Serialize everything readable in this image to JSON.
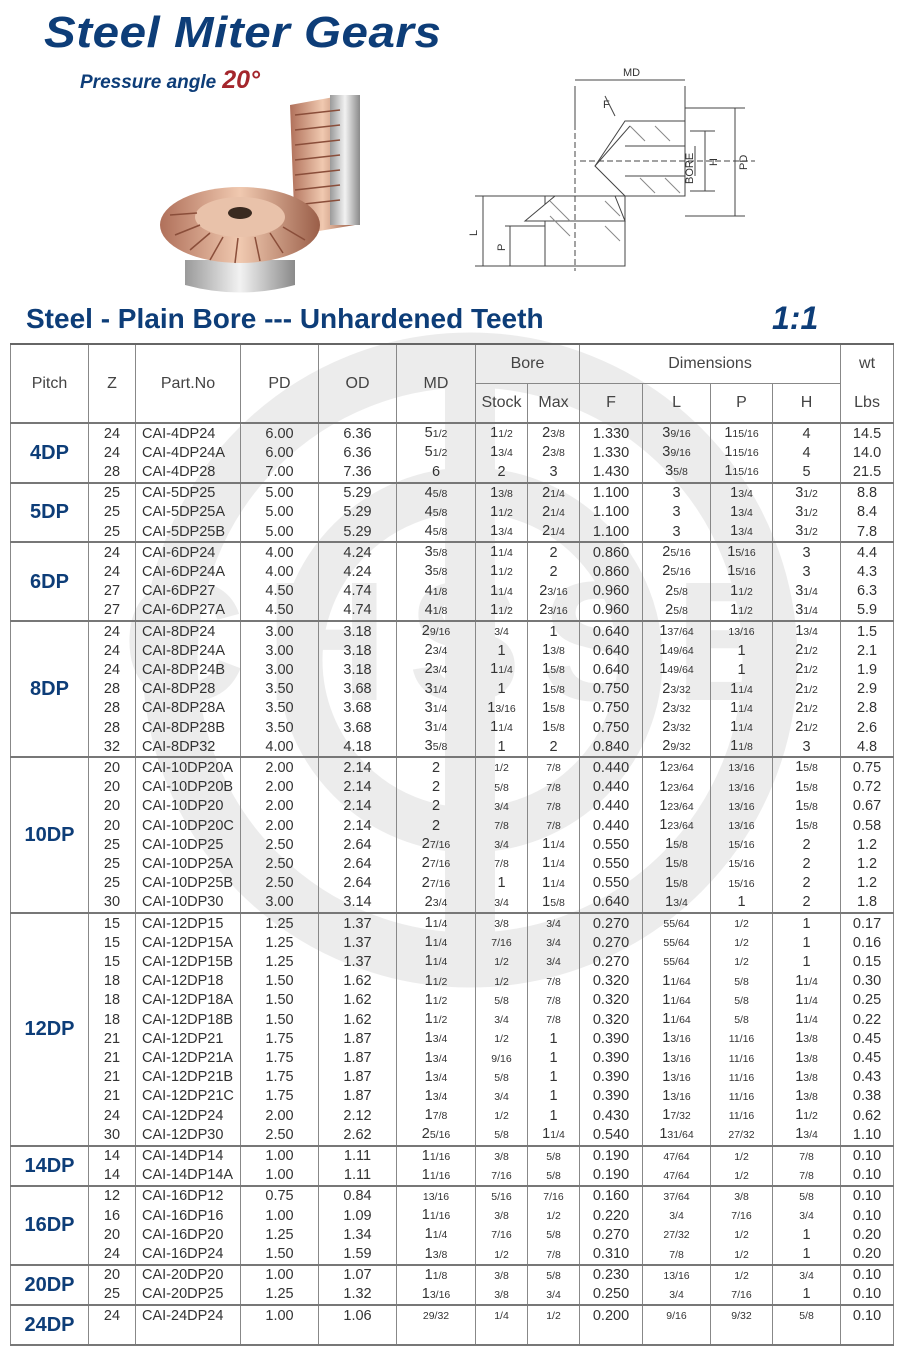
{
  "header": {
    "title": "Steel Miter Gears",
    "pressure_angle_label": "Pressure angle",
    "pressure_angle_value": "20°",
    "subtitle": "Steel - Plain Bore --- Unhardened Teeth",
    "ratio": "1:1"
  },
  "diagram": {
    "labels": {
      "md": "MD",
      "f": "F",
      "bore": "BORE",
      "h": "H",
      "pd": "PD",
      "l": "L",
      "p": "P"
    }
  },
  "watermark": "CHSSB",
  "colors": {
    "brand_blue": "#0d3d78",
    "accent_red": "#a4262c"
  },
  "table": {
    "headers": {
      "pitch": "Pitch",
      "z": "Z",
      "part": "Part.No",
      "pd": "PD",
      "od": "OD",
      "md": "MD",
      "bore": "Bore",
      "stock": "Stock",
      "max": "Max",
      "dimensions": "Dimensions",
      "f": "F",
      "l": "L",
      "p": "P",
      "h": "H",
      "wt": "wt",
      "lbs": "Lbs"
    },
    "groups": [
      {
        "pitch": "4DP",
        "rows": [
          [
            "24",
            "CAI-4DP24",
            "6.00",
            "6.36",
            "5 1/2",
            "1 1/2",
            "2 3/8",
            "1.330",
            "3 9/16",
            "1 15/16",
            "4",
            "14.5"
          ],
          [
            "24",
            "CAI-4DP24A",
            "6.00",
            "6.36",
            "5 1/2",
            "1 3/4",
            "2 3/8",
            "1.330",
            "3 9/16",
            "1 15/16",
            "4",
            "14.0"
          ],
          [
            "28",
            "CAI-4DP28",
            "7.00",
            "7.36",
            "6",
            "2",
            "3",
            "1.430",
            "3 5/8",
            "1 15/16",
            "5",
            "21.5"
          ]
        ]
      },
      {
        "pitch": "5DP",
        "rows": [
          [
            "25",
            "CAI-5DP25",
            "5.00",
            "5.29",
            "4 5/8",
            "1 3/8",
            "2 1/4",
            "1.100",
            "3",
            "1 3/4",
            "3 1/2",
            "8.8"
          ],
          [
            "25",
            "CAI-5DP25A",
            "5.00",
            "5.29",
            "4 5/8",
            "1 1/2",
            "2 1/4",
            "1.100",
            "3",
            "1 3/4",
            "3 1/2",
            "8.4"
          ],
          [
            "25",
            "CAI-5DP25B",
            "5.00",
            "5.29",
            "4 5/8",
            "1 3/4",
            "2 1/4",
            "1.100",
            "3",
            "1 3/4",
            "3 1/2",
            "7.8"
          ]
        ]
      },
      {
        "pitch": "6DP",
        "rows": [
          [
            "24",
            "CAI-6DP24",
            "4.00",
            "4.24",
            "3 5/8",
            "1 1/4",
            "2",
            "0.860",
            "2 5/16",
            "1 5/16",
            "3",
            "4.4"
          ],
          [
            "24",
            "CAI-6DP24A",
            "4.00",
            "4.24",
            "3 5/8",
            "1 1/2",
            "2",
            "0.860",
            "2 5/16",
            "1 5/16",
            "3",
            "4.3"
          ],
          [
            "27",
            "CAI-6DP27",
            "4.50",
            "4.74",
            "4 1/8",
            "1 1/4",
            "2 3/16",
            "0.960",
            "2 5/8",
            "1 1/2",
            "3 1/4",
            "6.3"
          ],
          [
            "27",
            "CAI-6DP27A",
            "4.50",
            "4.74",
            "4 1/8",
            "1 1/2",
            "2 3/16",
            "0.960",
            "2 5/8",
            "1 1/2",
            "3 1/4",
            "5.9"
          ]
        ]
      },
      {
        "pitch": "8DP",
        "rows": [
          [
            "24",
            "CAI-8DP24",
            "3.00",
            "3.18",
            "2 9/16",
            "3/4",
            "1",
            "0.640",
            "1 37/64",
            "13/16",
            "1 3/4",
            "1.5"
          ],
          [
            "24",
            "CAI-8DP24A",
            "3.00",
            "3.18",
            "2 3/4",
            "1",
            "1 3/8",
            "0.640",
            "1 49/64",
            "1",
            "2 1/2",
            "2.1"
          ],
          [
            "24",
            "CAI-8DP24B",
            "3.00",
            "3.18",
            "2 3/4",
            "1 1/4",
            "1 5/8",
            "0.640",
            "1 49/64",
            "1",
            "2 1/2",
            "1.9"
          ],
          [
            "28",
            "CAI-8DP28",
            "3.50",
            "3.68",
            "3 1/4",
            "1",
            "1 5/8",
            "0.750",
            "2 3/32",
            "1 1/4",
            "2 1/2",
            "2.9"
          ],
          [
            "28",
            "CAI-8DP28A",
            "3.50",
            "3.68",
            "3 1/4",
            "1 3/16",
            "1 5/8",
            "0.750",
            "2 3/32",
            "1 1/4",
            "2 1/2",
            "2.8"
          ],
          [
            "28",
            "CAI-8DP28B",
            "3.50",
            "3.68",
            "3 1/4",
            "1 1/4",
            "1 5/8",
            "0.750",
            "2 3/32",
            "1 1/4",
            "2 1/2",
            "2.6"
          ],
          [
            "32",
            "CAI-8DP32",
            "4.00",
            "4.18",
            "3 5/8",
            "1",
            "2",
            "0.840",
            "2 9/32",
            "1 1/8",
            "3",
            "4.8"
          ]
        ]
      },
      {
        "pitch": "10DP",
        "rows": [
          [
            "20",
            "CAI-10DP20A",
            "2.00",
            "2.14",
            "2",
            "1/2",
            "7/8",
            "0.440",
            "1 23/64",
            "13/16",
            "1 5/8",
            "0.75"
          ],
          [
            "20",
            "CAI-10DP20B",
            "2.00",
            "2.14",
            "2",
            "5/8",
            "7/8",
            "0.440",
            "1 23/64",
            "13/16",
            "1 5/8",
            "0.72"
          ],
          [
            "20",
            "CAI-10DP20",
            "2.00",
            "2.14",
            "2",
            "3/4",
            "7/8",
            "0.440",
            "1 23/64",
            "13/16",
            "1 5/8",
            "0.67"
          ],
          [
            "20",
            "CAI-10DP20C",
            "2.00",
            "2.14",
            "2",
            "7/8",
            "7/8",
            "0.440",
            "1 23/64",
            "13/16",
            "1 5/8",
            "0.58"
          ],
          [
            "25",
            "CAI-10DP25",
            "2.50",
            "2.64",
            "2 7/16",
            "3/4",
            "1 1/4",
            "0.550",
            "1 5/8",
            "15/16",
            "2",
            "1.2"
          ],
          [
            "25",
            "CAI-10DP25A",
            "2.50",
            "2.64",
            "2 7/16",
            "7/8",
            "1 1/4",
            "0.550",
            "1 5/8",
            "15/16",
            "2",
            "1.2"
          ],
          [
            "25",
            "CAI-10DP25B",
            "2.50",
            "2.64",
            "2 7/16",
            "1",
            "1 1/4",
            "0.550",
            "1 5/8",
            "15/16",
            "2",
            "1.2"
          ],
          [
            "30",
            "CAI-10DP30",
            "3.00",
            "3.14",
            "2 3/4",
            "3/4",
            "1 5/8",
            "0.640",
            "1 3/4",
            "1",
            "2",
            "1.8"
          ]
        ]
      },
      {
        "pitch": "12DP",
        "rows": [
          [
            "15",
            "CAI-12DP15",
            "1.25",
            "1.37",
            "1 1/4",
            "3/8",
            "3/4",
            "0.270",
            "55/64",
            "1/2",
            "1",
            "0.17"
          ],
          [
            "15",
            "CAI-12DP15A",
            "1.25",
            "1.37",
            "1 1/4",
            "7/16",
            "3/4",
            "0.270",
            "55/64",
            "1/2",
            "1",
            "0.16"
          ],
          [
            "15",
            "CAI-12DP15B",
            "1.25",
            "1.37",
            "1 1/4",
            "1/2",
            "3/4",
            "0.270",
            "55/64",
            "1/2",
            "1",
            "0.15"
          ],
          [
            "18",
            "CAI-12DP18",
            "1.50",
            "1.62",
            "1 1/2",
            "1/2",
            "7/8",
            "0.320",
            "1 1/64",
            "5/8",
            "1 1/4",
            "0.30"
          ],
          [
            "18",
            "CAI-12DP18A",
            "1.50",
            "1.62",
            "1 1/2",
            "5/8",
            "7/8",
            "0.320",
            "1 1/64",
            "5/8",
            "1 1/4",
            "0.25"
          ],
          [
            "18",
            "CAI-12DP18B",
            "1.50",
            "1.62",
            "1 1/2",
            "3/4",
            "7/8",
            "0.320",
            "1 1/64",
            "5/8",
            "1 1/4",
            "0.22"
          ],
          [
            "21",
            "CAI-12DP21",
            "1.75",
            "1.87",
            "1 3/4",
            "1/2",
            "1",
            "0.390",
            "1 3/16",
            "11/16",
            "1 3/8",
            "0.45"
          ],
          [
            "21",
            "CAI-12DP21A",
            "1.75",
            "1.87",
            "1 3/4",
            "9/16",
            "1",
            "0.390",
            "1 3/16",
            "11/16",
            "1 3/8",
            "0.45"
          ],
          [
            "21",
            "CAI-12DP21B",
            "1.75",
            "1.87",
            "1 3/4",
            "5/8",
            "1",
            "0.390",
            "1 3/16",
            "11/16",
            "1 3/8",
            "0.43"
          ],
          [
            "21",
            "CAI-12DP21C",
            "1.75",
            "1.87",
            "1 3/4",
            "3/4",
            "1",
            "0.390",
            "1 3/16",
            "11/16",
            "1 3/8",
            "0.38"
          ],
          [
            "24",
            "CAI-12DP24",
            "2.00",
            "2.12",
            "1 7/8",
            "1/2",
            "1",
            "0.430",
            "1 7/32",
            "11/16",
            "1 1/2",
            "0.62"
          ],
          [
            "30",
            "CAI-12DP30",
            "2.50",
            "2.62",
            "2 5/16",
            "5/8",
            "1 1/4",
            "0.540",
            "1 31/64",
            "27/32",
            "1 3/4",
            "1.10"
          ]
        ]
      },
      {
        "pitch": "14DP",
        "rows": [
          [
            "14",
            "CAI-14DP14",
            "1.00",
            "1.11",
            "1 1/16",
            "3/8",
            "5/8",
            "0.190",
            "47/64",
            "1/2",
            "7/8",
            "0.10"
          ],
          [
            "14",
            "CAI-14DP14A",
            "1.00",
            "1.11",
            "1 1/16",
            "7/16",
            "5/8",
            "0.190",
            "47/64",
            "1/2",
            "7/8",
            "0.10"
          ]
        ]
      },
      {
        "pitch": "16DP",
        "rows": [
          [
            "12",
            "CAI-16DP12",
            "0.75",
            "0.84",
            "13/16",
            "5/16",
            "7/16",
            "0.160",
            "37/64",
            "3/8",
            "5/8",
            "0.10"
          ],
          [
            "16",
            "CAI-16DP16",
            "1.00",
            "1.09",
            "1 1/16",
            "3/8",
            "1/2",
            "0.220",
            "3/4",
            "7/16",
            "3/4",
            "0.10"
          ],
          [
            "20",
            "CAI-16DP20",
            "1.25",
            "1.34",
            "1 1/4",
            "7/16",
            "5/8",
            "0.270",
            "27/32",
            "1/2",
            "1",
            "0.20"
          ],
          [
            "24",
            "CAI-16DP24",
            "1.50",
            "1.59",
            "1 3/8",
            "1/2",
            "7/8",
            "0.310",
            "7/8",
            "1/2",
            "1",
            "0.20"
          ]
        ]
      },
      {
        "pitch": "20DP",
        "rows": [
          [
            "20",
            "CAI-20DP20",
            "1.00",
            "1.07",
            "1 1/8",
            "3/8",
            "5/8",
            "0.230",
            "13/16",
            "1/2",
            "3/4",
            "0.10"
          ],
          [
            "25",
            "CAI-20DP25",
            "1.25",
            "1.32",
            "1 3/16",
            "3/8",
            "3/4",
            "0.250",
            "3/4",
            "7/16",
            "1",
            "0.10"
          ]
        ]
      },
      {
        "pitch": "24DP",
        "rows": [
          [
            "24",
            "CAI-24DP24",
            "1.00",
            "1.06",
            "29/32",
            "1/4",
            "1/2",
            "0.200",
            "9/16",
            "9/32",
            "5/8",
            "0.10"
          ]
        ]
      }
    ]
  }
}
